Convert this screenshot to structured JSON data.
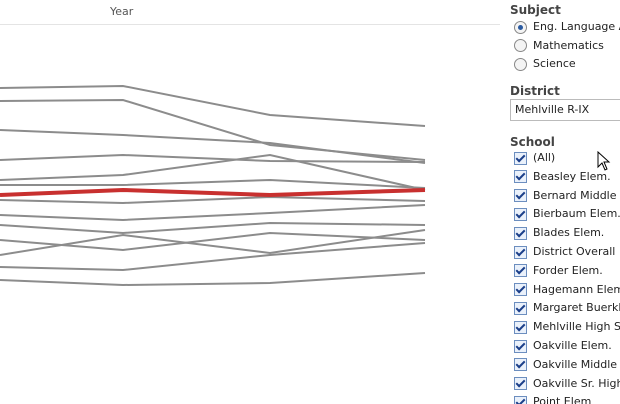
{
  "chart": {
    "x_label": "Year"
  },
  "subject": {
    "title": "Subject",
    "options": [
      "Eng. Language A",
      "Mathematics",
      "Science"
    ],
    "selected": 0
  },
  "district": {
    "title": "District",
    "value": "Mehlville R-IX"
  },
  "school": {
    "title": "School",
    "options": [
      "(All)",
      "Beasley Elem.",
      "Bernard Middle",
      "Bierbaum Elem.",
      "Blades Elem.",
      "District Overall",
      "Forder Elem.",
      "Hagemann Elem.",
      "Margaret Buerkle",
      "Mehlville High Sc",
      "Oakville Elem.",
      "Oakville Middle",
      "Oakville Sr. High",
      "Point Elem"
    ]
  }
}
